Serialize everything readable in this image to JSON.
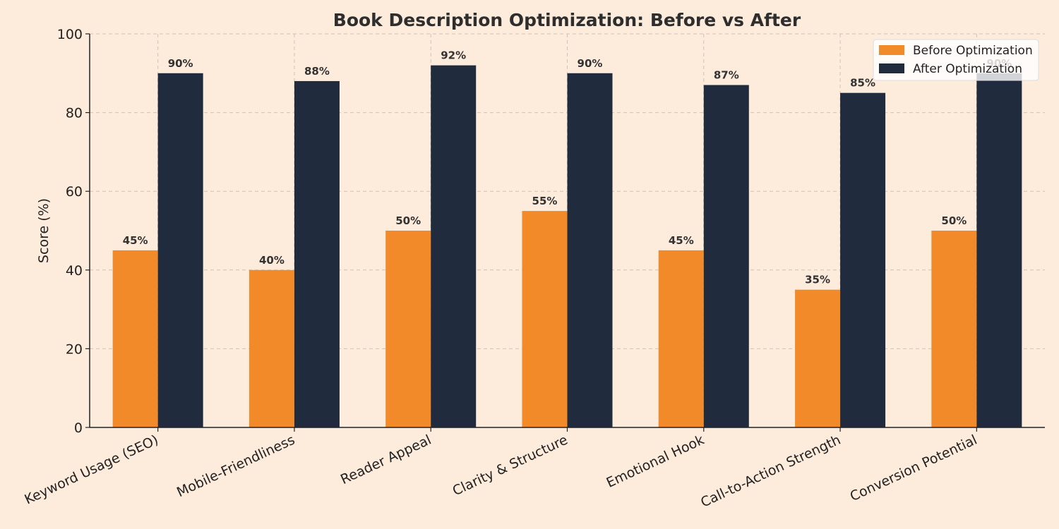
{
  "colors": {
    "background": "#fdebdb",
    "before": "#f28a2a",
    "after": "#202c3d",
    "grid": "#cfc3b8",
    "axis": "#222222"
  },
  "chart_data": {
    "type": "bar",
    "title": "Book Description Optimization: Before vs After",
    "xlabel": "",
    "ylabel": "Score (%)",
    "ylim": [
      0,
      100
    ],
    "yticks": [
      0,
      20,
      40,
      60,
      80,
      100
    ],
    "grid": true,
    "legend_position": "top-right",
    "categories": [
      "Keyword Usage (SEO)",
      "Mobile-Friendliness",
      "Reader Appeal",
      "Clarity & Structure",
      "Emotional Hook",
      "Call-to-Action Strength",
      "Conversion Potential"
    ],
    "series": [
      {
        "name": "Before Optimization",
        "color": "#f28a2a",
        "values": [
          45,
          40,
          50,
          55,
          45,
          35,
          50
        ],
        "labels": [
          "45%",
          "40%",
          "50%",
          "55%",
          "45%",
          "35%",
          "50%"
        ]
      },
      {
        "name": "After Optimization",
        "color": "#202c3d",
        "values": [
          90,
          88,
          92,
          90,
          87,
          85,
          90
        ],
        "labels": [
          "90%",
          "88%",
          "92%",
          "90%",
          "87%",
          "85%",
          "90%"
        ]
      }
    ]
  }
}
